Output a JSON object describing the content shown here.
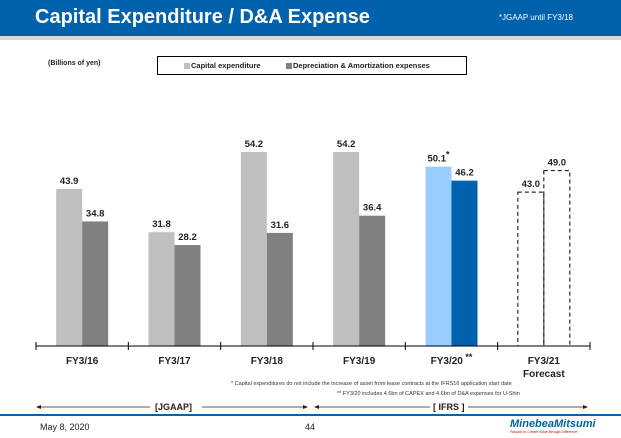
{
  "header": {
    "title": "Capital Expenditure / D&A Expense",
    "note": "*JGAAP until FY3/18",
    "color": "#0062AD"
  },
  "units_label": "(Billions of yen)",
  "legend": {
    "items": [
      {
        "label": "Capital expenditure",
        "color": "#BFBFBF"
      },
      {
        "label": "Depreciation & Amortization expenses",
        "color": "#808080"
      }
    ]
  },
  "chart_data": {
    "type": "bar",
    "title": "Capital Expenditure / D&A Expense",
    "ylabel": "(Billions of yen)",
    "xlabel": "",
    "ylim": [
      0,
      54.2
    ],
    "grid": false,
    "legend_position": "top",
    "categories": [
      "FY3/16",
      "FY3/17",
      "FY3/18",
      "FY3/19",
      "FY3/20",
      "FY3/21"
    ],
    "category_sublabels": [
      "",
      "",
      "",
      "",
      "",
      "Forecast"
    ],
    "category_marks": [
      "",
      "",
      "",
      "",
      "**",
      ""
    ],
    "series": [
      {
        "name": "Capital expenditure",
        "values": [
          43.9,
          31.8,
          54.2,
          54.2,
          50.1,
          43.0
        ],
        "labels": [
          "43.9",
          "31.8",
          "54.2",
          "54.2",
          "50.1",
          "43.0"
        ],
        "label_marks": [
          "",
          "",
          "",
          "",
          "*",
          ""
        ],
        "colors": [
          "#BFBFBF",
          "#BFBFBF",
          "#BFBFBF",
          "#BFBFBF",
          "#99CCFF",
          "none"
        ],
        "styles": [
          "solid",
          "solid",
          "solid",
          "solid",
          "solid",
          "dashed"
        ]
      },
      {
        "name": "Depreciation & Amortization expenses",
        "values": [
          34.8,
          28.2,
          31.6,
          36.4,
          46.2,
          49.0
        ],
        "labels": [
          "34.8",
          "28.2",
          "31.6",
          "36.4",
          "46.2",
          "49.0"
        ],
        "label_marks": [
          "",
          "",
          "",
          "",
          "",
          ""
        ],
        "colors": [
          "#808080",
          "#808080",
          "#808080",
          "#808080",
          "#0062AD",
          "none"
        ],
        "styles": [
          "solid",
          "solid",
          "solid",
          "solid",
          "solid",
          "dashed"
        ]
      }
    ]
  },
  "footnotes": [
    "* Capital expenditures do not include the increase of asset from lease contracts at the IFRS16 application start date",
    "** FY3/20 includes 4.6bn of CAPEX and 4.6bn of D&A expenses for U-Shin"
  ],
  "regions": [
    {
      "label": "[JGAAP]"
    },
    {
      "label": "[ IFRS ]"
    }
  ],
  "footer": {
    "date": "May 8, 2020",
    "page": "44",
    "logo_name": "MinebeaMitsumi",
    "logo_tagline": "Passion to Create Value through Difference"
  }
}
